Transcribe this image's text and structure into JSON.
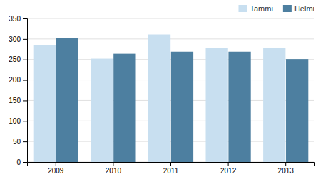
{
  "chart_data": {
    "type": "bar",
    "categories": [
      "2009",
      "2010",
      "2011",
      "2012",
      "2013"
    ],
    "series": [
      {
        "name": "Tammi",
        "color": "#c8dff0",
        "values": [
          285,
          252,
          311,
          278,
          279
        ]
      },
      {
        "name": "Helmi",
        "color": "#4d7fa0",
        "values": [
          302,
          264,
          269,
          269,
          251
        ]
      }
    ],
    "ylim": [
      0,
      350
    ],
    "yticks": [
      0,
      50,
      100,
      150,
      200,
      250,
      300,
      350
    ],
    "grid": true,
    "legend": "upper right"
  }
}
